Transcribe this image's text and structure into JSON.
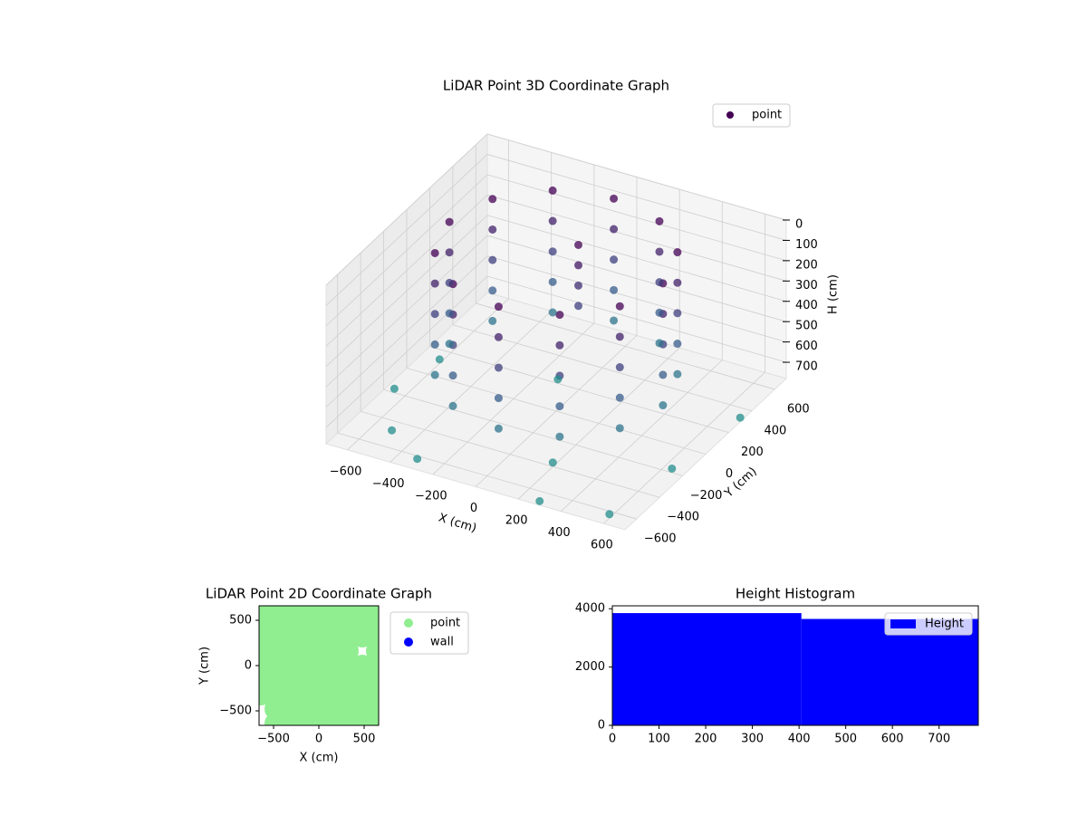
{
  "chart_data": [
    {
      "type": "scatter3d",
      "title": "LiDAR Point 3D Coordinate Graph",
      "x_label": "X (cm)",
      "y_label": "Y (cm)",
      "z_label": "H (cm)",
      "xlim": [
        -700,
        700
      ],
      "ylim": [
        -700,
        700
      ],
      "zlim": [
        0,
        780
      ],
      "z_inverted": true,
      "xticks": [
        {
          "value": -600,
          "label": "−600"
        },
        {
          "value": -400,
          "label": "−400"
        },
        {
          "value": -200,
          "label": "−200"
        },
        0,
        200,
        400,
        600
      ],
      "yticks": [
        {
          "value": -600,
          "label": "−600"
        },
        {
          "value": -400,
          "label": "−400"
        },
        {
          "value": -200,
          "label": "−200"
        },
        0,
        200,
        400,
        600
      ],
      "zticks": [
        0,
        100,
        200,
        300,
        400,
        500,
        600,
        700
      ],
      "legend": "upper right",
      "colormap": [
        "#440154",
        "#3b528b",
        "#21918c"
      ],
      "series": [
        {
          "name": "point",
          "color": "#440154",
          "x": [
            500,
            433,
            250,
            0,
            -250,
            -433,
            -500,
            -433,
            -250,
            0,
            250,
            433,
            500,
            433,
            250,
            0,
            -250,
            -433,
            -500,
            -433,
            -250,
            0,
            250,
            433,
            500,
            433,
            250,
            0,
            -250,
            -433,
            -500,
            -433,
            -250,
            0,
            250,
            433,
            500,
            433,
            250,
            0,
            -250,
            -433,
            -500,
            -433,
            -250,
            0,
            250,
            433,
            500,
            433,
            250,
            0,
            -250,
            -433,
            -500,
            -433,
            -250,
            0,
            250,
            433,
            50,
            50,
            50,
            50,
            -650,
            -500,
            300,
            600,
            700,
            -300,
            200,
            -100,
            650,
            -600
          ],
          "y": [
            0,
            250,
            433,
            500,
            433,
            250,
            0,
            -250,
            -433,
            -500,
            -433,
            -250,
            0,
            250,
            433,
            500,
            433,
            250,
            0,
            -250,
            -433,
            -500,
            -433,
            -250,
            0,
            250,
            433,
            500,
            433,
            250,
            0,
            -250,
            -433,
            -500,
            -433,
            -250,
            0,
            250,
            433,
            500,
            433,
            250,
            0,
            -250,
            -433,
            -500,
            -433,
            -250,
            0,
            250,
            433,
            500,
            433,
            250,
            0,
            -250,
            -433,
            -500,
            -433,
            -250,
            100,
            100,
            100,
            100,
            -200,
            -500,
            -700,
            -650,
            300,
            -650,
            -400,
            200,
            -200,
            100
          ],
          "z": [
            0,
            0,
            0,
            0,
            0,
            0,
            0,
            0,
            0,
            0,
            0,
            0,
            150,
            150,
            150,
            150,
            150,
            150,
            150,
            150,
            150,
            150,
            150,
            150,
            300,
            300,
            300,
            300,
            300,
            300,
            300,
            300,
            300,
            300,
            300,
            300,
            450,
            450,
            450,
            450,
            450,
            450,
            450,
            450,
            450,
            450,
            450,
            450,
            600,
            600,
            600,
            600,
            600,
            600,
            600,
            600,
            600,
            600,
            600,
            600,
            0,
            100,
            200,
            300,
            760,
            760,
            760,
            760,
            760,
            760,
            760,
            760,
            760,
            760
          ]
        }
      ]
    },
    {
      "type": "scatter",
      "title": "LiDAR Point 2D Coordinate Graph",
      "x_label": "X (cm)",
      "y_label": "Y (cm)",
      "xlim": [
        -660,
        660
      ],
      "ylim": [
        -660,
        660
      ],
      "xticks": [
        {
          "value": -500,
          "label": "−500"
        },
        0,
        500
      ],
      "yticks": [
        {
          "value": -500,
          "label": "−500"
        },
        0,
        500
      ],
      "legend": "outside right",
      "series": [
        {
          "name": "point",
          "color": "#90ee90",
          "x": [
            -480,
            -320,
            -160,
            0,
            160,
            320,
            480,
            640,
            -480,
            -320,
            -160,
            0,
            160,
            320,
            480,
            640,
            -640,
            -480,
            -320,
            -160,
            0,
            160,
            320,
            480,
            640,
            -640,
            -480,
            -320,
            -160,
            0,
            160,
            320,
            480,
            640,
            -640,
            -480,
            -320,
            -160,
            0,
            160,
            320,
            480,
            640,
            -640,
            -480,
            -320,
            -160,
            0,
            160,
            320,
            640,
            -640,
            -480,
            -320,
            -160,
            0,
            160,
            320,
            480,
            640,
            -640,
            -480,
            -320,
            -160,
            0,
            160,
            320,
            480,
            640,
            -640,
            -480,
            -320,
            -160,
            0,
            160,
            320,
            480,
            640
          ],
          "y": [
            -640,
            -640,
            -640,
            -640,
            -640,
            -640,
            -640,
            -640,
            -480,
            -480,
            -480,
            -480,
            -480,
            -480,
            -480,
            -480,
            -320,
            -320,
            -320,
            -320,
            -320,
            -320,
            -320,
            -320,
            -320,
            -160,
            -160,
            -160,
            -160,
            -160,
            -160,
            -160,
            -160,
            -160,
            0,
            0,
            0,
            0,
            0,
            0,
            0,
            0,
            0,
            160,
            160,
            160,
            160,
            160,
            160,
            160,
            160,
            320,
            320,
            320,
            320,
            320,
            320,
            320,
            320,
            320,
            480,
            480,
            480,
            480,
            480,
            480,
            480,
            480,
            480,
            640,
            640,
            640,
            640,
            640,
            640,
            640,
            640,
            640
          ]
        },
        {
          "name": "wall",
          "color": "#0000ff",
          "x": [],
          "y": []
        }
      ]
    },
    {
      "type": "histogram",
      "title": "Height Histogram",
      "xlim": [
        0,
        784
      ],
      "ylim": [
        0,
        4100
      ],
      "xticks": [
        0,
        100,
        200,
        300,
        400,
        500,
        600,
        700
      ],
      "yticks": [
        0,
        2000,
        4000
      ],
      "legend": "upper right",
      "series": [
        {
          "name": "Height",
          "color": "#0000ff",
          "bins": [
            0,
            405,
            784
          ],
          "values": [
            3850,
            3650
          ]
        }
      ]
    }
  ]
}
